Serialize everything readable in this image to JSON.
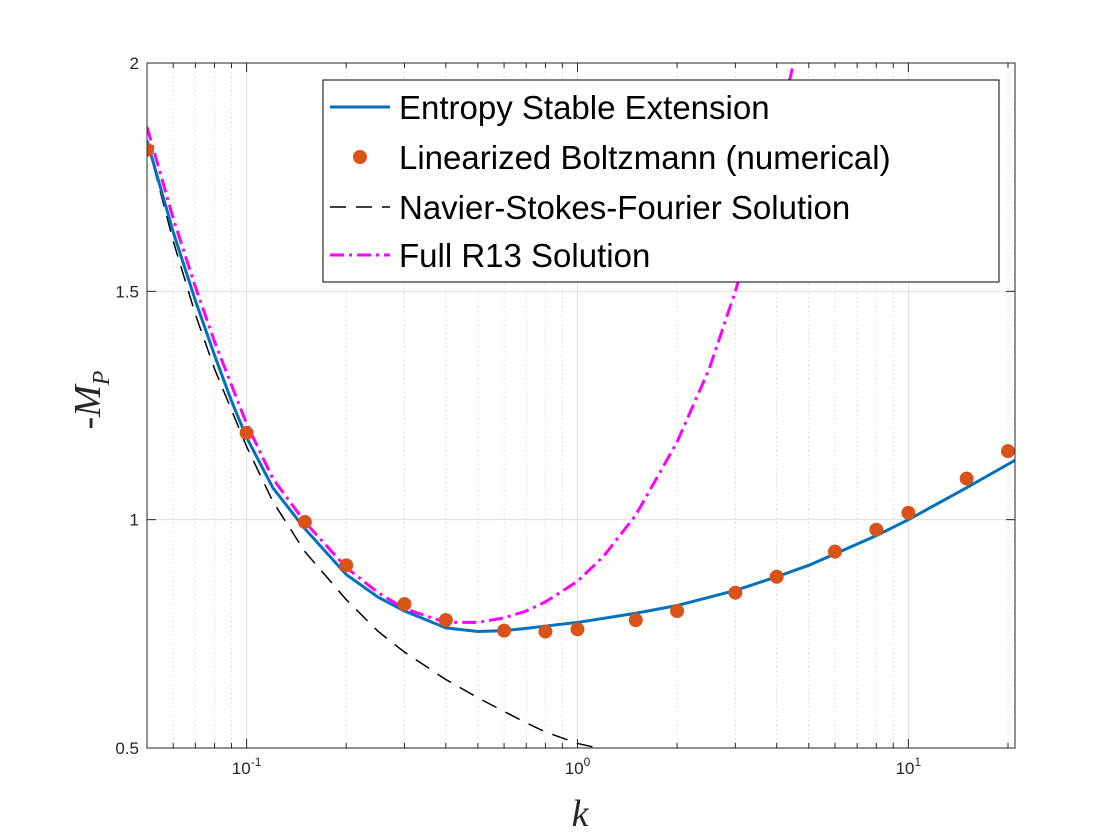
{
  "chart_data": {
    "type": "line",
    "x_scale": "log",
    "xlabel": "k",
    "ylabel": "-M",
    "ylabel_subscript": "P",
    "xlim": [
      0.05,
      21
    ],
    "ylim": [
      0.5,
      2
    ],
    "y_ticks": [
      {
        "value": 0.5,
        "label": "0.5"
      },
      {
        "value": 1,
        "label": "1"
      },
      {
        "value": 1.5,
        "label": "1.5"
      },
      {
        "value": 2,
        "label": "2"
      }
    ],
    "x_ticks": [
      {
        "value": 0.1,
        "base": "10",
        "exponent": "-1"
      },
      {
        "value": 1,
        "base": "10",
        "exponent": "0"
      },
      {
        "value": 10,
        "base": "10",
        "exponent": "1"
      }
    ],
    "grid": true,
    "legend_position": "top-right",
    "series": [
      {
        "name": "Entropy Stable Extension",
        "style": "solid",
        "color": "#0072BD",
        "x": [
          0.05,
          0.06,
          0.07,
          0.08,
          0.09,
          0.1,
          0.12,
          0.15,
          0.2,
          0.25,
          0.3,
          0.4,
          0.5,
          0.6,
          0.7,
          0.8,
          1,
          1.5,
          2,
          3,
          4,
          5,
          6,
          8,
          10,
          15,
          21
        ],
        "y": [
          1.83,
          1.63,
          1.48,
          1.36,
          1.26,
          1.18,
          1.07,
          0.98,
          0.88,
          0.83,
          0.8,
          0.763,
          0.755,
          0.757,
          0.762,
          0.767,
          0.775,
          0.795,
          0.812,
          0.845,
          0.875,
          0.9,
          0.925,
          0.965,
          1.0,
          1.07,
          1.13
        ]
      },
      {
        "name": "Linearized Boltzmann (numerical)",
        "style": "markers",
        "color": "#D95319",
        "x": [
          0.05,
          0.1,
          0.15,
          0.2,
          0.3,
          0.4,
          0.6,
          0.8,
          1,
          1.5,
          2,
          3,
          4,
          6,
          8,
          10,
          15,
          20
        ],
        "y": [
          1.81,
          1.19,
          0.995,
          0.9,
          0.815,
          0.78,
          0.757,
          0.755,
          0.76,
          0.78,
          0.8,
          0.84,
          0.875,
          0.93,
          0.978,
          1.015,
          1.09,
          1.15
        ]
      },
      {
        "name": "Navier-Stokes-Fourier Solution",
        "style": "dashed",
        "color": "#000000",
        "x": [
          0.05,
          0.06,
          0.07,
          0.08,
          0.1,
          0.12,
          0.15,
          0.2,
          0.25,
          0.3,
          0.4,
          0.5,
          0.6,
          0.7,
          0.8,
          1.0,
          1.15
        ],
        "y": [
          1.83,
          1.61,
          1.45,
          1.33,
          1.16,
          1.04,
          0.93,
          0.825,
          0.755,
          0.71,
          0.65,
          0.61,
          0.58,
          0.555,
          0.535,
          0.51,
          0.5
        ]
      },
      {
        "name": "Full R13 Solution",
        "style": "dashdot",
        "color": "#FF00FF",
        "x": [
          0.05,
          0.06,
          0.07,
          0.08,
          0.1,
          0.12,
          0.15,
          0.2,
          0.25,
          0.3,
          0.4,
          0.5,
          0.6,
          0.7,
          0.8,
          1.0,
          1.2,
          1.5,
          2.0,
          2.5,
          3.0,
          3.5,
          4.0,
          4.5
        ],
        "y": [
          1.86,
          1.66,
          1.51,
          1.39,
          1.21,
          1.09,
          0.995,
          0.895,
          0.84,
          0.805,
          0.775,
          0.775,
          0.785,
          0.8,
          0.82,
          0.865,
          0.92,
          1.01,
          1.17,
          1.33,
          1.5,
          1.67,
          1.84,
          2.0
        ]
      }
    ]
  }
}
